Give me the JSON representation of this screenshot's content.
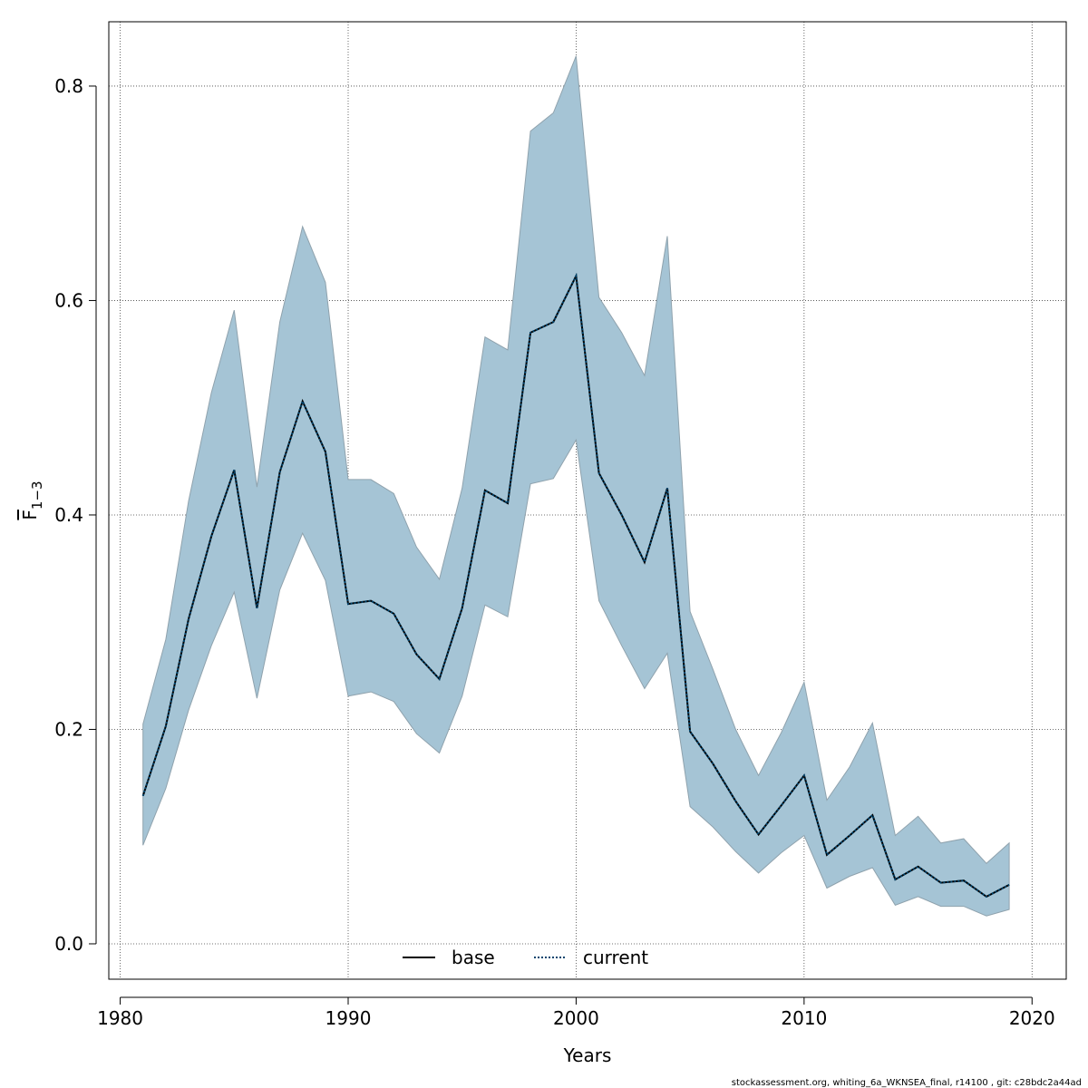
{
  "chart_data": {
    "type": "line",
    "title": "",
    "xlabel": "Years",
    "ylabel_main": "F",
    "ylabel_sub": "1−3",
    "xlim": [
      1979.5,
      2021.5
    ],
    "ylim": [
      -0.033,
      0.86
    ],
    "xticks": [
      1980,
      1990,
      2000,
      2010,
      2020
    ],
    "yticks": [
      0.0,
      0.2,
      0.4,
      0.6,
      0.8
    ],
    "ytick_labels": [
      "0.0",
      "0.2",
      "0.4",
      "0.6",
      "0.8"
    ],
    "grid": true,
    "legend_position": "bottom-center",
    "x": [
      1981,
      1982,
      1983,
      1984,
      1985,
      1986,
      1987,
      1988,
      1989,
      1990,
      1991,
      1992,
      1993,
      1994,
      1995,
      1996,
      1997,
      1998,
      1999,
      2000,
      2001,
      2002,
      2003,
      2004,
      2005,
      2006,
      2007,
      2008,
      2009,
      2010,
      2011,
      2012,
      2013,
      2014,
      2015,
      2016,
      2017,
      2018,
      2019
    ],
    "series": [
      {
        "name": "base",
        "style": "solid",
        "values": [
          0.138,
          0.203,
          0.303,
          0.38,
          0.442,
          0.313,
          0.44,
          0.506,
          0.459,
          0.317,
          0.32,
          0.308,
          0.27,
          0.247,
          0.313,
          0.423,
          0.411,
          0.57,
          0.58,
          0.623,
          0.439,
          0.4,
          0.356,
          0.425,
          0.198,
          0.168,
          0.133,
          0.102,
          0.129,
          0.157,
          0.083,
          0.101,
          0.12,
          0.06,
          0.072,
          0.057,
          0.059,
          0.044,
          0.055
        ],
        "lower": [
          0.092,
          0.145,
          0.218,
          0.278,
          0.328,
          0.229,
          0.33,
          0.383,
          0.339,
          0.231,
          0.235,
          0.226,
          0.196,
          0.178,
          0.231,
          0.316,
          0.305,
          0.429,
          0.434,
          0.47,
          0.32,
          0.278,
          0.238,
          0.271,
          0.128,
          0.109,
          0.086,
          0.066,
          0.085,
          0.101,
          0.052,
          0.063,
          0.071,
          0.036,
          0.044,
          0.035,
          0.035,
          0.026,
          0.032
        ],
        "upper": [
          0.205,
          0.284,
          0.413,
          0.514,
          0.591,
          0.426,
          0.58,
          0.669,
          0.617,
          0.433,
          0.433,
          0.42,
          0.37,
          0.34,
          0.425,
          0.566,
          0.554,
          0.758,
          0.775,
          0.828,
          0.603,
          0.57,
          0.53,
          0.66,
          0.31,
          0.256,
          0.2,
          0.157,
          0.197,
          0.244,
          0.134,
          0.165,
          0.206,
          0.101,
          0.119,
          0.094,
          0.098,
          0.075,
          0.094
        ]
      },
      {
        "name": "current",
        "style": "dotted",
        "values": [
          0.138,
          0.203,
          0.303,
          0.38,
          0.442,
          0.313,
          0.44,
          0.506,
          0.459,
          0.317,
          0.32,
          0.308,
          0.27,
          0.247,
          0.313,
          0.423,
          0.411,
          0.57,
          0.58,
          0.623,
          0.439,
          0.4,
          0.356,
          0.425,
          0.198,
          0.168,
          0.133,
          0.102,
          0.129,
          0.157,
          0.083,
          0.101,
          0.12,
          0.06,
          0.072,
          0.057,
          0.059,
          0.044,
          0.055
        ]
      }
    ],
    "colors": {
      "band_fill": "#a5c4d5",
      "band_stroke": "#8fa2ad",
      "base_line": "#000000",
      "current_line": "#00456e",
      "grid": "#444444",
      "axis": "#000000"
    }
  },
  "footer_text": "stockassessment.org, whiting_6a_WKNSEA_final, r14100 , git: c28bdc2a44ad"
}
